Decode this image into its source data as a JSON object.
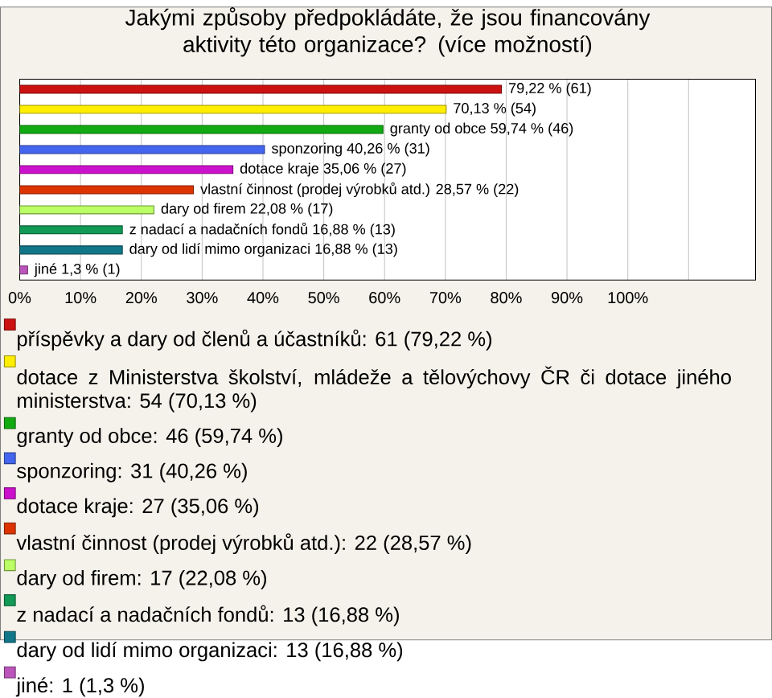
{
  "chart_data": {
    "type": "bar",
    "orientation": "horizontal",
    "title": "Jakými způsoby předpokládáte, že jsou financovány aktivity této organizace? (více možností)",
    "categories": [
      null,
      null,
      null,
      null,
      null,
      null,
      null,
      null,
      null,
      null
    ],
    "series": [
      {
        "name": "příspěvky a dary od členů a účastníků: 61 (79,22 %)",
        "color": "#cc1111",
        "values": [
          79.22,
          null,
          null,
          null,
          null,
          null,
          null,
          null,
          null,
          null
        ],
        "value_labels": [
          "79,22 % (61)",
          null,
          null,
          null,
          null,
          null,
          null,
          null,
          null,
          null
        ]
      },
      {
        "name": "dotace z Ministerstva školství, mládeže a tělovýchovy ČR či dotace jiného ministerstva: 54 (70,13 %)",
        "color": "#ffee00",
        "values": [
          null,
          70.13,
          null,
          null,
          null,
          null,
          null,
          null,
          null,
          null
        ],
        "value_labels": [
          null,
          "70,13 % (54)",
          null,
          null,
          null,
          null,
          null,
          null,
          null,
          null
        ]
      },
      {
        "name": "granty od obce: 46 (59,74 %)",
        "color": "#11aa11",
        "values": [
          null,
          null,
          59.74,
          null,
          null,
          null,
          null,
          null,
          null,
          null
        ],
        "value_labels": [
          null,
          null,
          "granty od obce 59,74 % (46)",
          null,
          null,
          null,
          null,
          null,
          null,
          null
        ]
      },
      {
        "name": "sponzoring: 31 (40,26 %)",
        "color": "#4466ee",
        "values": [
          null,
          null,
          null,
          40.26,
          null,
          null,
          null,
          null,
          null,
          null
        ],
        "value_labels": [
          null,
          null,
          null,
          "sponzoring 40,26 % (31)",
          null,
          null,
          null,
          null,
          null,
          null
        ]
      },
      {
        "name": "dotace kraje: 27 (35,06 %)",
        "color": "#cc11cc",
        "values": [
          null,
          null,
          null,
          null,
          35.06,
          null,
          null,
          null,
          null,
          null
        ],
        "value_labels": [
          null,
          null,
          null,
          null,
          "dotace kraje 35,06 % (27)",
          null,
          null,
          null,
          null,
          null
        ]
      },
      {
        "name": "vlastní činnost (prodej výrobků atd.): 22 (28,57 %)",
        "color": "#dd3300",
        "values": [
          null,
          null,
          null,
          null,
          null,
          28.57,
          null,
          null,
          null,
          null
        ],
        "value_labels": [
          null,
          null,
          null,
          null,
          null,
          "vlastní činnost (prodej výrobků atd.) 28,57 % (22)",
          null,
          null,
          null,
          null
        ]
      },
      {
        "name": "dary od firem: 17 (22,08 %)",
        "color": "#bbff66",
        "values": [
          null,
          null,
          null,
          null,
          null,
          null,
          22.08,
          null,
          null,
          null
        ],
        "value_labels": [
          null,
          null,
          null,
          null,
          null,
          null,
          "dary od firem 22,08 % (17)",
          null,
          null,
          null
        ]
      },
      {
        "name": "z nadací a nadačních fondů: 13 (16,88 %)",
        "color": "#119955",
        "values": [
          null,
          null,
          null,
          null,
          null,
          null,
          null,
          16.88,
          null,
          null
        ],
        "value_labels": [
          null,
          null,
          null,
          null,
          null,
          null,
          null,
          "z nadací a nadačních fondů 16,88 % (13)",
          null,
          null
        ]
      },
      {
        "name": "dary od lidí mimo organizaci: 13 (16,88 %)",
        "color": "#117788",
        "values": [
          null,
          null,
          null,
          null,
          null,
          null,
          null,
          null,
          16.88,
          null
        ],
        "value_labels": [
          null,
          null,
          null,
          null,
          null,
          null,
          null,
          null,
          "dary od lidí mimo organizaci 16,88 % (13)",
          null
        ]
      },
      {
        "name": "jiné: 1 (1,3 %)",
        "color": "#bb55bb",
        "values": [
          null,
          null,
          null,
          null,
          null,
          null,
          null,
          null,
          null,
          1.3
        ],
        "value_labels": [
          null,
          null,
          null,
          null,
          null,
          null,
          null,
          null,
          null,
          "jiné 1,3 % (1)"
        ]
      }
    ],
    "xlim": [
      0,
      121
    ],
    "xticks": [
      {
        "value": 0,
        "label": "0%"
      },
      {
        "value": 10,
        "label": "10%"
      },
      {
        "value": 20,
        "label": "20%"
      },
      {
        "value": 30,
        "label": "30%"
      },
      {
        "value": 40,
        "label": "40%"
      },
      {
        "value": 50,
        "label": "50%"
      },
      {
        "value": 60,
        "label": "60%"
      },
      {
        "value": 70,
        "label": "70%"
      },
      {
        "value": 80,
        "label": "80%"
      },
      {
        "value": 90,
        "label": "90%"
      },
      {
        "value": 100,
        "label": "100%"
      },
      {
        "value": 110,
        "label": null
      }
    ],
    "grid": "x",
    "legend": "bottom"
  }
}
